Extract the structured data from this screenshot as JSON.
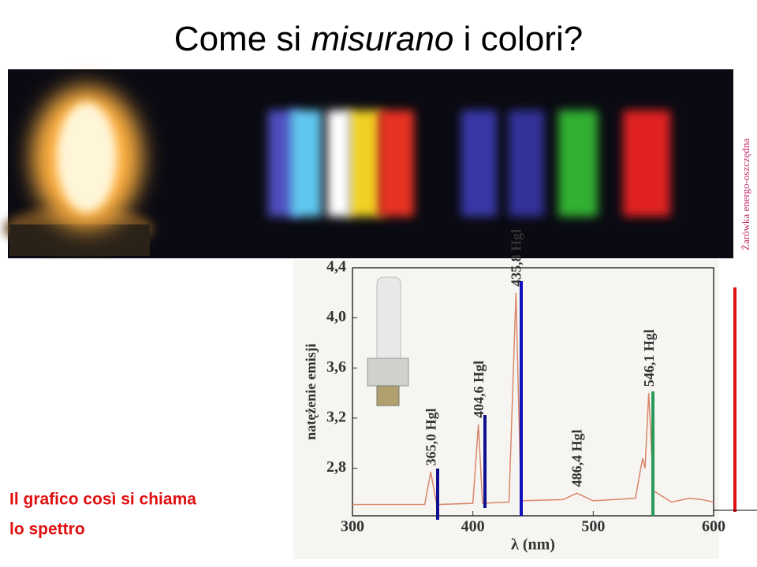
{
  "title_parts": [
    "Come si ",
    "misurano",
    " i colori?"
  ],
  "side_label": "Żarówka energo-oszczędna",
  "caption": [
    "Il grafico così si chiama",
    "lo spettro"
  ],
  "chart_data": {
    "type": "line",
    "ylabel": "natężenie emisji",
    "xlabel": "λ (nm)",
    "xlim": [
      300,
      600
    ],
    "xticks": [
      300,
      400,
      500,
      600
    ],
    "ylim": [
      2.42,
      4.4
    ],
    "yticks": [
      {
        "value": 2.8,
        "label": "2,8"
      },
      {
        "value": 3.2,
        "label": "3,2"
      },
      {
        "value": 3.6,
        "label": "3,6"
      },
      {
        "value": 4.0,
        "label": "4,0"
      },
      {
        "value": 4.4,
        "label": "4,4"
      }
    ],
    "series": [
      {
        "color": "#d9866a",
        "x": [
          300,
          360,
          365,
          370,
          400,
          404.6,
          408,
          430,
          435.8,
          440,
          475,
          486.4,
          500,
          535,
          541,
          543,
          546.1,
          550,
          565,
          580,
          590,
          600
        ],
        "values": [
          2.51,
          2.51,
          2.77,
          2.51,
          2.52,
          3.15,
          2.52,
          2.53,
          4.2,
          2.54,
          2.55,
          2.6,
          2.54,
          2.56,
          2.88,
          2.8,
          3.4,
          2.62,
          2.53,
          2.56,
          2.55,
          2.53
        ]
      }
    ],
    "annotations": [
      {
        "text": "365,0 Hgl",
        "x": 365.0
      },
      {
        "text": "404,6 Hgl",
        "x": 404.6
      },
      {
        "text": "435,8 Hgl",
        "x": 435.8
      },
      {
        "text": "486,4 Hgl",
        "x": 486.4
      },
      {
        "text": "546,1 Hgl",
        "x": 546.1
      }
    ]
  }
}
